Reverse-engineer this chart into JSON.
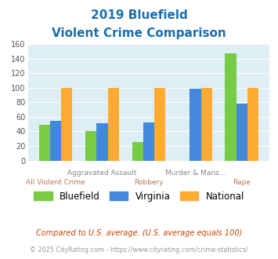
{
  "title_line1": "2019 Bluefield",
  "title_line2": "Violent Crime Comparison",
  "title_color": "#1a6fad",
  "categories": [
    "All Violent Crime",
    "Aggravated Assault",
    "Robbery",
    "Murder & Mans...",
    "Rape"
  ],
  "bluefield": [
    49,
    41,
    25,
    0,
    147
  ],
  "virginia": [
    55,
    51,
    52,
    99,
    78
  ],
  "national": [
    100,
    100,
    100,
    100,
    100
  ],
  "colors": {
    "bluefield": "#77cc44",
    "virginia": "#4488dd",
    "national": "#ffaa33"
  },
  "ylim": [
    0,
    160
  ],
  "yticks": [
    0,
    20,
    40,
    60,
    80,
    100,
    120,
    140,
    160
  ],
  "bg_color": "#ddeef4",
  "footnote1": "Compared to U.S. average. (U.S. average equals 100)",
  "footnote2": "© 2025 CityRating.com - https://www.cityrating.com/crime-statistics/",
  "footnote1_color": "#cc4400",
  "footnote2_color": "#999999",
  "xlabels_row1": [
    "",
    "Aggravated Assault",
    "",
    "Murder & Mans...",
    ""
  ],
  "xlabels_row2": [
    "All Violent Crime",
    "",
    "Robbery",
    "",
    "Rape"
  ],
  "row1_color": "#888888",
  "row2_color": "#bb7755"
}
